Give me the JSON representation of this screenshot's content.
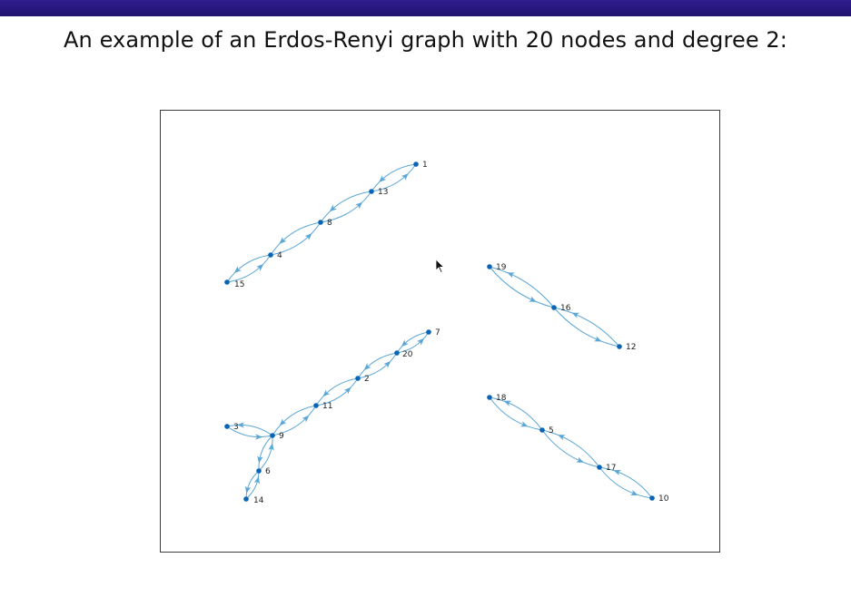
{
  "slide": {
    "title": "An example of an Erdos-Renyi graph with 20 nodes and degree 2:"
  },
  "graph": {
    "directed": true,
    "node_color": "#0a64b4",
    "edge_color": "#5aa6d6",
    "nodes": [
      {
        "id": 1,
        "label": "1"
      },
      {
        "id": 13,
        "label": "13"
      },
      {
        "id": 8,
        "label": "8"
      },
      {
        "id": 4,
        "label": "4"
      },
      {
        "id": 15,
        "label": "15"
      },
      {
        "id": 19,
        "label": "19"
      },
      {
        "id": 16,
        "label": "16"
      },
      {
        "id": 12,
        "label": "12"
      },
      {
        "id": 7,
        "label": "7"
      },
      {
        "id": 20,
        "label": "20"
      },
      {
        "id": 2,
        "label": "2"
      },
      {
        "id": 11,
        "label": "11"
      },
      {
        "id": 9,
        "label": "9"
      },
      {
        "id": 3,
        "label": "3"
      },
      {
        "id": 6,
        "label": "6"
      },
      {
        "id": 14,
        "label": "14"
      },
      {
        "id": 18,
        "label": "18"
      },
      {
        "id": 5,
        "label": "5"
      },
      {
        "id": 17,
        "label": "17"
      },
      {
        "id": 10,
        "label": "10"
      }
    ],
    "edges": [
      [
        1,
        13
      ],
      [
        13,
        1
      ],
      [
        13,
        8
      ],
      [
        8,
        13
      ],
      [
        8,
        4
      ],
      [
        4,
        8
      ],
      [
        4,
        15
      ],
      [
        15,
        4
      ],
      [
        19,
        16
      ],
      [
        16,
        19
      ],
      [
        16,
        12
      ],
      [
        12,
        16
      ],
      [
        7,
        20
      ],
      [
        20,
        7
      ],
      [
        20,
        2
      ],
      [
        2,
        20
      ],
      [
        2,
        11
      ],
      [
        11,
        2
      ],
      [
        11,
        9
      ],
      [
        9,
        11
      ],
      [
        3,
        9
      ],
      [
        9,
        3
      ],
      [
        9,
        6
      ],
      [
        6,
        9
      ],
      [
        6,
        14
      ],
      [
        14,
        6
      ],
      [
        18,
        5
      ],
      [
        5,
        18
      ],
      [
        5,
        17
      ],
      [
        17,
        5
      ],
      [
        17,
        10
      ],
      [
        10,
        17
      ]
    ]
  }
}
